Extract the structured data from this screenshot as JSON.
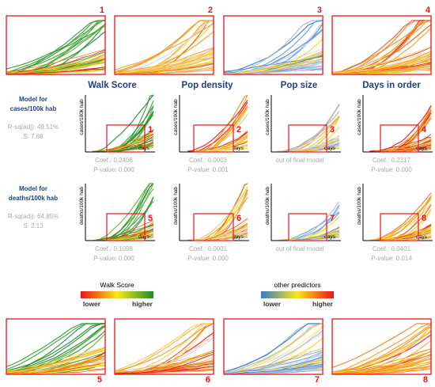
{
  "columns": [
    "Walk Score",
    "Pop density",
    "Pop size",
    "Days in order"
  ],
  "rows": [
    {
      "label_lines": [
        "Model for",
        "cases/100k hab"
      ],
      "rsq": "R-sq(adj): 49.51%",
      "s": "S: 7.68",
      "ylabel": "cases/100k hab",
      "xlabel": "days",
      "panels": [
        {
          "num": "1",
          "coef": "Coef.: 0.2406",
          "pval": "P-value: 0.000",
          "scheme": "walk"
        },
        {
          "num": "2",
          "coef": "Coef.: 0.0003",
          "pval": "P-value: 0.001",
          "scheme": "other"
        },
        {
          "num": "3",
          "note": "out of final model",
          "scheme": "size"
        },
        {
          "num": "4",
          "coef": "Coef.: 0.2317",
          "pval": "P-value: 0.000",
          "scheme": "orange"
        }
      ]
    },
    {
      "label_lines": [
        "Model for",
        "deaths/100k hab"
      ],
      "rsq": "R-sq(adj): 64.85%",
      "s": "S: 2.13",
      "ylabel": "deaths/100k hab",
      "xlabel": "days",
      "panels": [
        {
          "num": "5",
          "coef": "Coef.: 0.1098",
          "pval": "P-value: 0.000",
          "scheme": "walk"
        },
        {
          "num": "6",
          "coef": "Coef.: 0.0001",
          "pval": "P-value: 0.000",
          "scheme": "other"
        },
        {
          "num": "7",
          "note": "out of final model",
          "scheme": "size"
        },
        {
          "num": "8",
          "coef": "Coef.: 0.0401",
          "pval": "P-value: 0.014",
          "scheme": "orange"
        }
      ]
    }
  ],
  "zoom_numbers_top": [
    "1",
    "2",
    "3",
    "4"
  ],
  "zoom_numbers_bottom": [
    "5",
    "6",
    "7",
    "8"
  ],
  "legend_walk": {
    "title": "Walk Score",
    "low": "lower",
    "high": "higher",
    "colors": [
      "#e8141a",
      "#f7e81c",
      "#1e8c2c"
    ]
  },
  "legend_other": {
    "title": "other predictors",
    "low": "lower",
    "high": "higher",
    "colors": [
      "#3b78c8",
      "#f7e81c",
      "#e8141a"
    ]
  },
  "colors": {
    "title_blue": "#1f3f86",
    "box_red": "#e8141a",
    "stats_grey": "#a9a9a9"
  },
  "chart_data": {
    "type": "line",
    "title": "",
    "description_free": true,
    "panels_top_row_ylabel": "cases/100k hab",
    "panels_bottom_row_ylabel": "deaths/100k hab",
    "xlabel": "days",
    "series_count_per_panel": 26
  }
}
